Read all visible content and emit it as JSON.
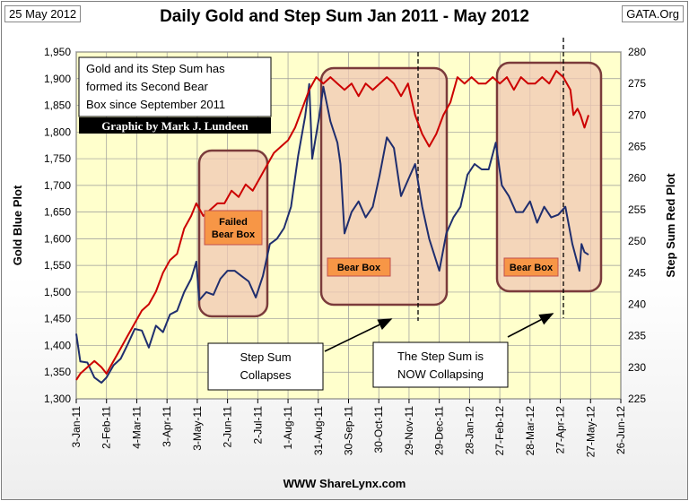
{
  "header": {
    "date": "25 May 2012",
    "title": "Daily Gold and Step Sum Jan 2011 - May 2012",
    "source": "GATA.Org"
  },
  "footer": {
    "text": "WWW ShareLynx.com"
  },
  "colors": {
    "plot_bg": "#ffffcc",
    "gold": "#1f2e6e",
    "stepsum": "#cc0000",
    "bear_box_fill": "#f0c8b4",
    "bear_box_border": "#7b3b3b",
    "label_fill": "#f79646"
  },
  "chart_data": {
    "type": "line",
    "title": "Daily Gold and Step Sum Jan 2011 - May 2012",
    "x_tick_labels": [
      "3-Jan-11",
      "2-Feb-11",
      "4-Mar-11",
      "3-Apr-11",
      "3-May-11",
      "2-Jun-11",
      "2-Jul-11",
      "1-Aug-11",
      "31-Aug-11",
      "30-Sep-11",
      "30-Oct-11",
      "29-Nov-11",
      "29-Dec-11",
      "28-Jan-12",
      "27-Feb-12",
      "28-Mar-12",
      "27-Apr-12",
      "27-May-12",
      "26-Jun-12"
    ],
    "y_left": {
      "label": "Gold Blue Plot",
      "ylim": [
        1300,
        1950
      ],
      "ticks": [
        "1,300",
        "1,350",
        "1,400",
        "1,450",
        "1,500",
        "1,550",
        "1,600",
        "1,650",
        "1,700",
        "1,750",
        "1,800",
        "1,850",
        "1,900",
        "1,950"
      ]
    },
    "y_right": {
      "label": "Step Sum Red Plot",
      "ylim": [
        225,
        280
      ],
      "ticks": [
        "225",
        "230",
        "235",
        "240",
        "245",
        "250",
        "255",
        "260",
        "265",
        "270",
        "275",
        "280"
      ]
    },
    "grid": true,
    "series": [
      {
        "name": "Gold Blue Plot",
        "axis": "left",
        "points": [
          [
            "3-Jan-11",
            1422
          ],
          [
            "7-Jan-11",
            1370
          ],
          [
            "14-Jan-11",
            1368
          ],
          [
            "21-Jan-11",
            1340
          ],
          [
            "28-Jan-11",
            1330
          ],
          [
            "2-Feb-11",
            1340
          ],
          [
            "9-Feb-11",
            1363
          ],
          [
            "16-Feb-11",
            1375
          ],
          [
            "23-Feb-11",
            1402
          ],
          [
            "2-Mar-11",
            1431
          ],
          [
            "9-Mar-11",
            1428
          ],
          [
            "16-Mar-11",
            1396
          ],
          [
            "23-Mar-11",
            1437
          ],
          [
            "30-Mar-11",
            1425
          ],
          [
            "6-Apr-11",
            1458
          ],
          [
            "13-Apr-11",
            1465
          ],
          [
            "20-Apr-11",
            1500
          ],
          [
            "27-Apr-11",
            1525
          ],
          [
            "2-May-11",
            1557
          ],
          [
            "5-May-11",
            1485
          ],
          [
            "12-May-11",
            1500
          ],
          [
            "19-May-11",
            1495
          ],
          [
            "26-May-11",
            1525
          ],
          [
            "2-Jun-11",
            1540
          ],
          [
            "9-Jun-11",
            1540
          ],
          [
            "16-Jun-11",
            1530
          ],
          [
            "23-Jun-11",
            1520
          ],
          [
            "30-Jun-11",
            1490
          ],
          [
            "7-Jul-11",
            1530
          ],
          [
            "14-Jul-11",
            1590
          ],
          [
            "21-Jul-11",
            1600
          ],
          [
            "28-Jul-11",
            1620
          ],
          [
            "4-Aug-11",
            1660
          ],
          [
            "11-Aug-11",
            1755
          ],
          [
            "18-Aug-11",
            1830
          ],
          [
            "22-Aug-11",
            1890
          ],
          [
            "25-Aug-11",
            1750
          ],
          [
            "1-Sep-11",
            1830
          ],
          [
            "5-Sep-11",
            1885
          ],
          [
            "12-Sep-11",
            1820
          ],
          [
            "19-Sep-11",
            1780
          ],
          [
            "22-Sep-11",
            1740
          ],
          [
            "26-Sep-11",
            1610
          ],
          [
            "3-Oct-11",
            1650
          ],
          [
            "10-Oct-11",
            1670
          ],
          [
            "17-Oct-11",
            1640
          ],
          [
            "24-Oct-11",
            1660
          ],
          [
            "31-Oct-11",
            1720
          ],
          [
            "7-Nov-11",
            1790
          ],
          [
            "14-Nov-11",
            1770
          ],
          [
            "21-Nov-11",
            1680
          ],
          [
            "28-Nov-11",
            1710
          ],
          [
            "5-Dec-11",
            1740
          ],
          [
            "12-Dec-11",
            1660
          ],
          [
            "19-Dec-11",
            1600
          ],
          [
            "29-Dec-11",
            1540
          ],
          [
            "5-Jan-12",
            1610
          ],
          [
            "12-Jan-12",
            1640
          ],
          [
            "19-Jan-12",
            1660
          ],
          [
            "26-Jan-12",
            1720
          ],
          [
            "2-Feb-12",
            1740
          ],
          [
            "9-Feb-12",
            1730
          ],
          [
            "16-Feb-12",
            1730
          ],
          [
            "23-Feb-12",
            1780
          ],
          [
            "29-Feb-12",
            1700
          ],
          [
            "7-Mar-12",
            1680
          ],
          [
            "14-Mar-12",
            1650
          ],
          [
            "21-Mar-12",
            1650
          ],
          [
            "28-Mar-12",
            1670
          ],
          [
            "4-Apr-12",
            1630
          ],
          [
            "11-Apr-12",
            1660
          ],
          [
            "18-Apr-12",
            1640
          ],
          [
            "25-Apr-12",
            1645
          ],
          [
            "2-May-12",
            1660
          ],
          [
            "9-May-12",
            1590
          ],
          [
            "16-May-12",
            1540
          ],
          [
            "18-May-12",
            1590
          ],
          [
            "21-May-12",
            1575
          ],
          [
            "25-May-12",
            1570
          ]
        ]
      },
      {
        "name": "Step Sum Red Plot",
        "axis": "right",
        "points": [
          [
            "3-Jan-11",
            228
          ],
          [
            "7-Jan-11",
            229
          ],
          [
            "14-Jan-11",
            230
          ],
          [
            "21-Jan-11",
            231
          ],
          [
            "28-Jan-11",
            230
          ],
          [
            "2-Feb-11",
            229
          ],
          [
            "9-Feb-11",
            231
          ],
          [
            "16-Feb-11",
            233
          ],
          [
            "23-Feb-11",
            235
          ],
          [
            "2-Mar-11",
            237
          ],
          [
            "9-Mar-11",
            239
          ],
          [
            "16-Mar-11",
            240
          ],
          [
            "23-Mar-11",
            242
          ],
          [
            "30-Mar-11",
            245
          ],
          [
            "6-Apr-11",
            247
          ],
          [
            "13-Apr-11",
            248
          ],
          [
            "20-Apr-11",
            252
          ],
          [
            "27-Apr-11",
            254
          ],
          [
            "2-May-11",
            256
          ],
          [
            "9-May-11",
            254
          ],
          [
            "16-May-11",
            255
          ],
          [
            "23-May-11",
            256
          ],
          [
            "30-May-11",
            256
          ],
          [
            "6-Jun-11",
            258
          ],
          [
            "13-Jun-11",
            257
          ],
          [
            "20-Jun-11",
            259
          ],
          [
            "27-Jun-11",
            258
          ],
          [
            "4-Jul-11",
            260
          ],
          [
            "11-Jul-11",
            262
          ],
          [
            "18-Jul-11",
            264
          ],
          [
            "25-Jul-11",
            265
          ],
          [
            "1-Aug-11",
            266
          ],
          [
            "8-Aug-11",
            268
          ],
          [
            "15-Aug-11",
            271
          ],
          [
            "22-Aug-11",
            274
          ],
          [
            "29-Aug-11",
            276
          ],
          [
            "5-Sep-11",
            275
          ],
          [
            "12-Sep-11",
            276
          ],
          [
            "19-Sep-11",
            275
          ],
          [
            "26-Sep-11",
            274
          ],
          [
            "3-Oct-11",
            275
          ],
          [
            "10-Oct-11",
            273
          ],
          [
            "17-Oct-11",
            275
          ],
          [
            "24-Oct-11",
            274
          ],
          [
            "31-Oct-11",
            275
          ],
          [
            "7-Nov-11",
            276
          ],
          [
            "14-Nov-11",
            275
          ],
          [
            "21-Nov-11",
            273
          ],
          [
            "28-Nov-11",
            275
          ],
          [
            "5-Dec-11",
            270
          ],
          [
            "12-Dec-11",
            267
          ],
          [
            "19-Dec-11",
            265
          ],
          [
            "26-Dec-11",
            267
          ],
          [
            "2-Jan-12",
            270
          ],
          [
            "9-Jan-12",
            272
          ],
          [
            "16-Jan-12",
            276
          ],
          [
            "23-Jan-12",
            275
          ],
          [
            "30-Jan-12",
            276
          ],
          [
            "6-Feb-12",
            275
          ],
          [
            "13-Feb-12",
            275
          ],
          [
            "20-Feb-12",
            276
          ],
          [
            "27-Feb-12",
            275
          ],
          [
            "5-Mar-12",
            276
          ],
          [
            "12-Mar-12",
            274
          ],
          [
            "19-Mar-12",
            276
          ],
          [
            "26-Mar-12",
            275
          ],
          [
            "2-Apr-12",
            275
          ],
          [
            "9-Apr-12",
            276
          ],
          [
            "16-Apr-12",
            275
          ],
          [
            "23-Apr-12",
            277
          ],
          [
            "30-Apr-12",
            276
          ],
          [
            "7-May-12",
            274
          ],
          [
            "10-May-12",
            270
          ],
          [
            "14-May-12",
            271
          ],
          [
            "17-May-12",
            270
          ],
          [
            "21-May-12",
            268
          ],
          [
            "25-May-12",
            270
          ]
        ]
      }
    ],
    "annotations": {
      "note": [
        "Gold and its Step Sum has",
        "formed its Second Bear",
        "Box since September 2011"
      ],
      "credit": "Graphic by Mark J. Lundeen",
      "boxes": [
        {
          "label": [
            "Failed",
            "Bear Box"
          ]
        },
        {
          "label": [
            "Bear Box"
          ]
        },
        {
          "label": [
            "Bear Box"
          ]
        }
      ],
      "callouts": [
        {
          "text": [
            "Step Sum",
            "Collapses"
          ]
        },
        {
          "text": [
            "The Step Sum is",
            "NOW Collapsing"
          ]
        }
      ]
    }
  }
}
